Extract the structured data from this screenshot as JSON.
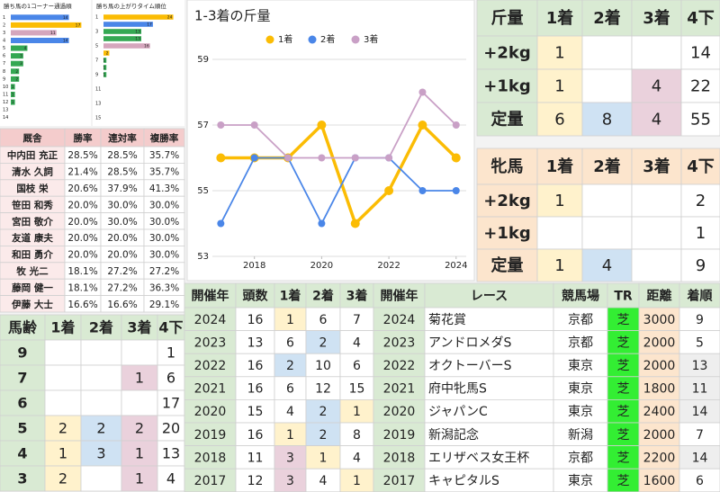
{
  "chart_data": [
    {
      "type": "bar",
      "orientation": "horizontal",
      "title": "勝ち馬の1コーナー通過順",
      "categories": [
        "1",
        "2",
        "3",
        "4",
        "5",
        "6",
        "7",
        "8",
        "9",
        "10",
        "11",
        "12",
        "13",
        "14"
      ],
      "values": [
        14,
        17,
        11,
        14,
        4,
        3,
        3,
        2,
        2,
        1,
        1,
        1,
        0,
        0
      ],
      "colors": [
        "#4a86e8",
        "#fbbc04",
        "#d5a6bd",
        "#4a86e8",
        "#34a853",
        "#34a853",
        "#34a853",
        "#34a853",
        "#34a853",
        "#34a853",
        "#34a853",
        "#34a853",
        "#34a853",
        "#34a853"
      ],
      "xlim": [
        0,
        18
      ]
    },
    {
      "type": "bar",
      "orientation": "horizontal",
      "title": "勝ち馬の上がりタイム順位",
      "categories": [
        "1",
        null,
        "3",
        null,
        "5",
        null,
        "7",
        null,
        "9",
        null,
        "11",
        null,
        "13",
        null,
        "15"
      ],
      "values": [
        24,
        17,
        13,
        13,
        16,
        2,
        1,
        1,
        1,
        0,
        0,
        0,
        0,
        0,
        0
      ],
      "colors": [
        "#fbbc04",
        "#4a86e8",
        "#34a853",
        "#34a853",
        "#d5a6bd",
        "#fbbc04",
        "#34a853",
        "#34a853",
        "#34a853",
        "#34a853",
        "#34a853",
        "#34a853",
        "#34a853",
        "#34a853",
        "#34a853"
      ],
      "xlim": [
        0,
        26
      ]
    },
    {
      "type": "line",
      "title": "1-3着の斤量",
      "x": [
        2017,
        2018,
        2019,
        2020,
        2021,
        2022,
        2023,
        2024
      ],
      "series": [
        {
          "name": "1着",
          "color": "#fbbc04",
          "values": [
            56,
            56,
            56,
            57,
            54,
            55,
            57,
            56
          ]
        },
        {
          "name": "2着",
          "color": "#4a86e8",
          "values": [
            54,
            56,
            56,
            54,
            56,
            56,
            55,
            55
          ]
        },
        {
          "name": "3着",
          "color": "#c9a0c6",
          "values": [
            57,
            57,
            56,
            56,
            56,
            56,
            58,
            57
          ]
        }
      ],
      "xlim": [
        2016.75,
        2024.3
      ],
      "xticks": [
        2018,
        2020,
        2022,
        2024
      ],
      "ylim": [
        53,
        59
      ],
      "yticks": [
        53,
        55,
        57,
        59
      ],
      "grid": true,
      "legend": "top"
    }
  ],
  "weight_table": {
    "header": [
      "斤量",
      "1着",
      "2着",
      "3着",
      "4下"
    ],
    "rows": [
      [
        "+2kg",
        1,
        null,
        null,
        14
      ],
      [
        "+1kg",
        1,
        null,
        4,
        22
      ],
      [
        "定量",
        6,
        8,
        4,
        55
      ]
    ]
  },
  "mare_table": {
    "header": [
      "牝馬",
      "1着",
      "2着",
      "3着",
      "4下"
    ],
    "rows": [
      [
        "+2kg",
        1,
        null,
        null,
        2
      ],
      [
        "+1kg",
        null,
        null,
        null,
        1
      ],
      [
        "定量",
        1,
        4,
        null,
        9
      ]
    ]
  },
  "trainer_table": {
    "header": [
      "厩舎",
      "勝率",
      "連対率",
      "複勝率"
    ],
    "rows": [
      [
        "中内田 充正",
        "28.5%",
        "28.5%",
        "35.7%"
      ],
      [
        "清水 久詞",
        "21.4%",
        "28.5%",
        "35.7%"
      ],
      [
        "国枝 栄",
        "20.6%",
        "37.9%",
        "41.3%"
      ],
      [
        "笹田 和秀",
        "20.0%",
        "30.0%",
        "30.0%"
      ],
      [
        "宮田 敬介",
        "20.0%",
        "30.0%",
        "30.0%"
      ],
      [
        "友道 康夫",
        "20.0%",
        "20.0%",
        "30.0%"
      ],
      [
        "和田 勇介",
        "20.0%",
        "20.0%",
        "30.0%"
      ],
      [
        "牧 光二",
        "18.1%",
        "27.2%",
        "27.2%"
      ],
      [
        "藤岡 健一",
        "18.1%",
        "27.2%",
        "36.3%"
      ],
      [
        "伊藤 大士",
        "16.6%",
        "16.6%",
        "29.1%"
      ]
    ]
  },
  "age_table": {
    "header": [
      "馬齢",
      "1着",
      "2着",
      "3着",
      "4下"
    ],
    "rows": [
      [
        9,
        null,
        null,
        null,
        1
      ],
      [
        7,
        null,
        null,
        1,
        6
      ],
      [
        6,
        null,
        null,
        null,
        17
      ],
      [
        5,
        2,
        2,
        2,
        20
      ],
      [
        4,
        1,
        3,
        1,
        13
      ],
      [
        3,
        2,
        null,
        1,
        4
      ]
    ]
  },
  "race_table": {
    "header": [
      "開催年",
      "頭数",
      "1着",
      "2着",
      "3着",
      "開催年",
      "レース",
      "競馬場",
      "TR",
      "距離",
      "着順"
    ],
    "rows": [
      [
        2024,
        16,
        1,
        6,
        7,
        2024,
        "菊花賞",
        "京都",
        "芝",
        3000,
        9
      ],
      [
        2023,
        13,
        6,
        2,
        4,
        2023,
        "アンドロメダS",
        "京都",
        "芝",
        2000,
        5
      ],
      [
        2022,
        16,
        2,
        10,
        6,
        2022,
        "オクトーバーS",
        "東京",
        "芝",
        2000,
        13
      ],
      [
        2021,
        16,
        6,
        12,
        15,
        2021,
        "府中牝馬S",
        "東京",
        "芝",
        1800,
        11
      ],
      [
        2020,
        15,
        4,
        2,
        1,
        2020,
        "ジャパンC",
        "東京",
        "芝",
        2400,
        14
      ],
      [
        2019,
        16,
        1,
        2,
        8,
        2019,
        "新潟記念",
        "新潟",
        "芝",
        2000,
        7
      ],
      [
        2018,
        11,
        3,
        1,
        4,
        2018,
        "エリザベス女王杯",
        "京都",
        "芝",
        2200,
        14
      ],
      [
        2017,
        12,
        3,
        4,
        1,
        2017,
        "キャピタルS",
        "東京",
        "芝",
        1600,
        6
      ]
    ]
  }
}
